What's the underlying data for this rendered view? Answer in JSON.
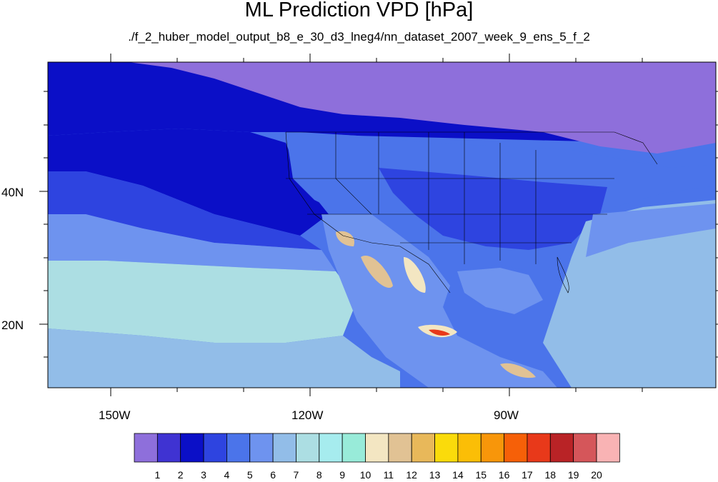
{
  "title": "ML Prediction VPD [hPa]",
  "subtitle": "./f_2_huber_model_output_b8_e_30_d3_lneg4/nn_dataset_2007_week_9_ens_5_f_2",
  "axes": {
    "lon_labels": [
      "150W",
      "120W",
      "90W"
    ],
    "lat_labels": [
      "40N",
      "20N"
    ]
  },
  "colorbar": {
    "labels": [
      "1",
      "2",
      "3",
      "4",
      "5",
      "6",
      "7",
      "8",
      "9",
      "10",
      "11",
      "12",
      "13",
      "14",
      "15",
      "16",
      "17",
      "18",
      "19",
      "20"
    ],
    "colors": [
      "#8e6fdb",
      "#3f33d2",
      "#0b0fc7",
      "#2e44e0",
      "#4b74ea",
      "#6e93ef",
      "#92bde8",
      "#acdee3",
      "#a6ecee",
      "#98ebd9",
      "#f3e6c2",
      "#e1c294",
      "#e8b85a",
      "#fadb0b",
      "#fbbe06",
      "#f8960a",
      "#f66008",
      "#e8391a",
      "#b92326",
      "#d5565a",
      "#f9b3b4"
    ]
  },
  "map_colors": {
    "level1": "#8e6fdb",
    "level2": "#3f33d2",
    "level3": "#0b0fc7",
    "level4": "#2e44e0",
    "level5": "#4b74ea",
    "level6": "#6e93ef",
    "level7": "#92bde8",
    "level8": "#acdee3",
    "level9": "#a6ecee",
    "level11": "#f3e6c2",
    "level12": "#e1c294",
    "level17": "#e8391a",
    "level18": "#b92326"
  }
}
